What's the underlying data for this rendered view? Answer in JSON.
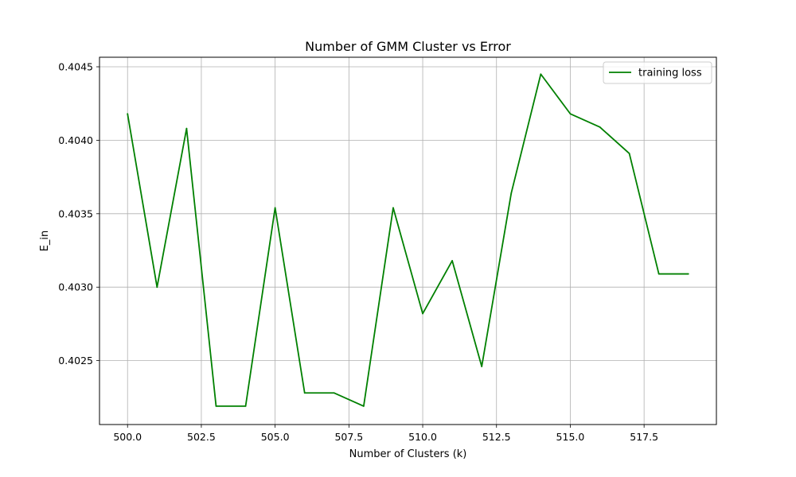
{
  "chart_data": {
    "type": "line",
    "title": "Number of GMM Cluster vs Error",
    "xlabel": "Number of Clusters (k)",
    "ylabel": "E_in",
    "x": [
      500,
      501,
      502,
      503,
      504,
      505,
      506,
      507,
      508,
      509,
      510,
      511,
      512,
      513,
      514,
      515,
      516,
      517,
      518,
      519
    ],
    "series": [
      {
        "name": "training loss",
        "color": "#008000",
        "values": [
          0.40418,
          0.403,
          0.40408,
          0.40219,
          0.40219,
          0.40354,
          0.40228,
          0.40228,
          0.40219,
          0.40354,
          0.40282,
          0.40318,
          0.40246,
          0.40364,
          0.40445,
          0.40418,
          0.40409,
          0.40391,
          0.40309,
          0.40309
        ]
      }
    ],
    "xlim": [
      499.05,
      519.95
    ],
    "ylim": [
      0.402065,
      0.404565
    ],
    "xticks": [
      500.0,
      502.5,
      505.0,
      507.5,
      510.0,
      512.5,
      515.0,
      517.5
    ],
    "xtick_labels": [
      "500.0",
      "502.5",
      "505.0",
      "507.5",
      "510.0",
      "512.5",
      "515.0",
      "517.5"
    ],
    "yticks": [
      0.4025,
      0.403,
      0.4035,
      0.404,
      0.4045
    ],
    "ytick_labels": [
      "0.4025",
      "0.4030",
      "0.4035",
      "0.4040",
      "0.4045"
    ],
    "grid": true,
    "legend_position": "top-right"
  }
}
